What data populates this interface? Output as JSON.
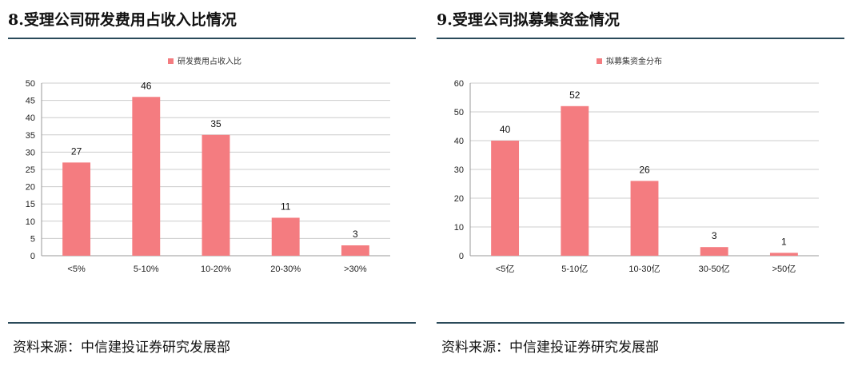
{
  "charts": [
    {
      "heading": "8.受理公司研发费用占收入比情况",
      "source": "资料来源：中信建投证券研究发展部",
      "chart_data": {
        "type": "bar",
        "categories": [
          "<5%",
          "5-10%",
          "10-20%",
          "20-30%",
          ">30%"
        ],
        "series": [
          {
            "name": "研发费用占收入比",
            "values": [
              27,
              46,
              35,
              11,
              3
            ]
          }
        ],
        "ylim": [
          0,
          50
        ],
        "yticks": [
          0,
          5,
          10,
          15,
          20,
          25,
          30,
          35,
          40,
          45,
          50
        ],
        "legend": "top",
        "grid": true,
        "bar_color": "#f47c80",
        "title": "",
        "xlabel": "",
        "ylabel": ""
      }
    },
    {
      "heading": "9.受理公司拟募集资金情况",
      "source": "资料来源：中信建投证券研究发展部",
      "chart_data": {
        "type": "bar",
        "categories": [
          "<5亿",
          "5-10亿",
          "10-30亿",
          "30-50亿",
          ">50亿"
        ],
        "series": [
          {
            "name": "拟募集资金分布",
            "values": [
              40,
              52,
              26,
              3,
              1
            ]
          }
        ],
        "ylim": [
          0,
          60
        ],
        "yticks": [
          0,
          10,
          20,
          30,
          40,
          50,
          60
        ],
        "legend": "top",
        "grid": true,
        "bar_color": "#f47c80",
        "title": "",
        "xlabel": "",
        "ylabel": ""
      }
    }
  ]
}
